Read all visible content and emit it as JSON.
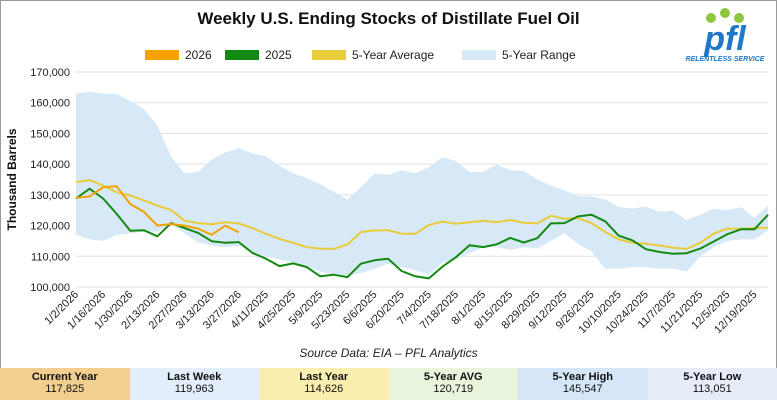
{
  "title": "Weekly U.S. Ending Stocks of Distillate Fuel Oil",
  "logo": {
    "text": "pfl",
    "tagline": "RELENTLESS SERVICE"
  },
  "source": "Source Data: EIA – PFL Analytics",
  "colors": {
    "c2026": "#f5a100",
    "c2025": "#128a12",
    "avg": "#e8cc3a",
    "range": "#d7e8f6",
    "grid": "#e0e0e0"
  },
  "legend": [
    {
      "label": "2026",
      "color": "#f5a100"
    },
    {
      "label": "2025",
      "color": "#128a12"
    },
    {
      "label": "5-Year Average",
      "color": "#e8cc3a"
    },
    {
      "label": "5-Year Range",
      "color": "#d7e8f6"
    }
  ],
  "stats": [
    {
      "label": "Current Year",
      "value": "117,825",
      "color": "#f2cf8e"
    },
    {
      "label": "Last Week",
      "value": "119,963",
      "color": "#e2effb"
    },
    {
      "label": "Last Year",
      "value": "114,626",
      "color": "#fbefb0"
    },
    {
      "label": "5-Year AVG",
      "value": "120,719",
      "color": "#e8f4dc"
    },
    {
      "label": "5-Year High",
      "value": "145,547",
      "color": "#d4e6f8"
    },
    {
      "label": "5-Year Low",
      "value": "113,051",
      "color": "#e7ecf9"
    }
  ],
  "chart_data": {
    "type": "line",
    "ylabel": "Thousand Barrels",
    "ylim": [
      100000,
      170000
    ],
    "yticks": [
      100000,
      110000,
      120000,
      130000,
      140000,
      150000,
      160000,
      170000
    ],
    "ytick_labels": [
      "100,000",
      "110,000",
      "120,000",
      "130,000",
      "140,000",
      "150,000",
      "160,000",
      "170,000"
    ],
    "x": [
      "1/2/2026",
      "1/9/2026",
      "1/16/2026",
      "1/23/2026",
      "1/30/2026",
      "2/6/2026",
      "2/13/2026",
      "2/20/2026",
      "2/27/2026",
      "3/6/2026",
      "3/13/2026",
      "3/20/2026",
      "3/27/2026",
      "4/3/2026",
      "4/11/2025",
      "4/18/2025",
      "4/25/2025",
      "5/2/2025",
      "5/9/2025",
      "5/16/2025",
      "5/23/2025",
      "5/30/2025",
      "6/6/2025",
      "6/13/2025",
      "6/20/2025",
      "6/27/2025",
      "7/4/2025",
      "7/11/2025",
      "7/18/2025",
      "7/25/2025",
      "8/1/2025",
      "8/8/2025",
      "8/15/2025",
      "8/22/2025",
      "8/29/2025",
      "9/5/2025",
      "9/12/2025",
      "9/19/2025",
      "9/26/2025",
      "10/3/2025",
      "10/10/2025",
      "10/17/2025",
      "10/24/2025",
      "10/31/2025",
      "11/7/2025",
      "11/14/2025",
      "11/21/2025",
      "11/28/2025",
      "12/5/2025",
      "12/12/2025",
      "12/19/2025",
      "12/26/2025"
    ],
    "xtick_labels": [
      "1/2/2026",
      "1/16/2026",
      "1/30/2026",
      "2/13/2026",
      "2/27/2026",
      "3/13/2026",
      "3/27/2026",
      "4/11/2025",
      "4/25/2025",
      "5/9/2025",
      "5/23/2025",
      "6/6/2025",
      "6/20/2025",
      "7/4/2025",
      "7/18/2025",
      "8/1/2025",
      "8/15/2025",
      "8/29/2025",
      "9/12/2025",
      "9/26/2025",
      "10/10/2025",
      "10/24/2025",
      "11/7/2025",
      "11/21/2025",
      "12/5/2025",
      "12/19/2025"
    ],
    "range_high": [
      163000,
      163500,
      163000,
      162800,
      160500,
      158000,
      152500,
      142500,
      137000,
      137500,
      141500,
      143800,
      145200,
      143500,
      142500,
      139500,
      137000,
      135500,
      133500,
      131000,
      128500,
      132500,
      137000,
      136500,
      138000,
      137000,
      139000,
      142200,
      141000,
      137500,
      137500,
      139800,
      138000,
      137800,
      135000,
      133000,
      131500,
      129500,
      129500,
      128500,
      126000,
      125500,
      126200,
      124500,
      124800,
      121800,
      123500,
      125500,
      125000,
      126000,
      122500,
      126500
    ],
    "range_low": [
      117000,
      115500,
      115000,
      117000,
      117500,
      118000,
      118000,
      120500,
      117500,
      114500,
      113500,
      113000,
      113500,
      111000,
      110000,
      109000,
      108000,
      107000,
      105000,
      104000,
      103500,
      104500,
      106000,
      107500,
      106500,
      105500,
      104000,
      108000,
      109000,
      111000,
      113000,
      113000,
      112000,
      113000,
      112500,
      115000,
      117500,
      114000,
      111500,
      106000,
      106000,
      106500,
      106500,
      106000,
      106000,
      105000,
      110000,
      113000,
      115000,
      115500,
      115500,
      118500
    ],
    "series": [
      {
        "name": "2026",
        "values": [
          129000,
          129500,
          132500,
          132800,
          127000,
          124500,
          120000,
          120500,
          120000,
          119000,
          117000,
          120000,
          117825,
          null,
          null,
          null,
          null,
          null,
          null,
          null,
          null,
          null,
          null,
          null,
          null,
          null,
          null,
          null,
          null,
          null,
          null,
          null,
          null,
          null,
          null,
          null,
          null,
          null,
          null,
          null,
          null,
          null,
          null,
          null,
          null,
          null,
          null,
          null,
          null,
          null,
          null,
          null
        ]
      },
      {
        "name": "2025",
        "values": [
          128800,
          132000,
          128800,
          123800,
          118300,
          118500,
          116500,
          120800,
          119200,
          117600,
          114900,
          114400,
          114626,
          111100,
          109200,
          106800,
          107700,
          106500,
          103500,
          104000,
          103200,
          107600,
          108700,
          109200,
          105200,
          103500,
          102800,
          106600,
          109700,
          113600,
          113000,
          113900,
          116000,
          114500,
          115900,
          120700,
          120800,
          123000,
          123500,
          121400,
          116700,
          115200,
          112300,
          111400,
          110800,
          111000,
          112500,
          114800,
          117200,
          118800,
          118800,
          123500
        ]
      },
      {
        "name": "5-Year Average",
        "values": [
          134200,
          134800,
          133000,
          130800,
          129800,
          128200,
          126500,
          125100,
          121600,
          120800,
          120400,
          121100,
          120719,
          119200,
          117300,
          115700,
          114400,
          113000,
          112500,
          112400,
          113800,
          117900,
          118400,
          118500,
          117400,
          117300,
          120200,
          121300,
          120600,
          121100,
          121600,
          121100,
          121800,
          120900,
          120700,
          123200,
          122200,
          122400,
          120800,
          117900,
          115500,
          114400,
          114100,
          113500,
          112800,
          112400,
          114400,
          117400,
          119000,
          118900,
          119200,
          119300
        ]
      }
    ]
  }
}
